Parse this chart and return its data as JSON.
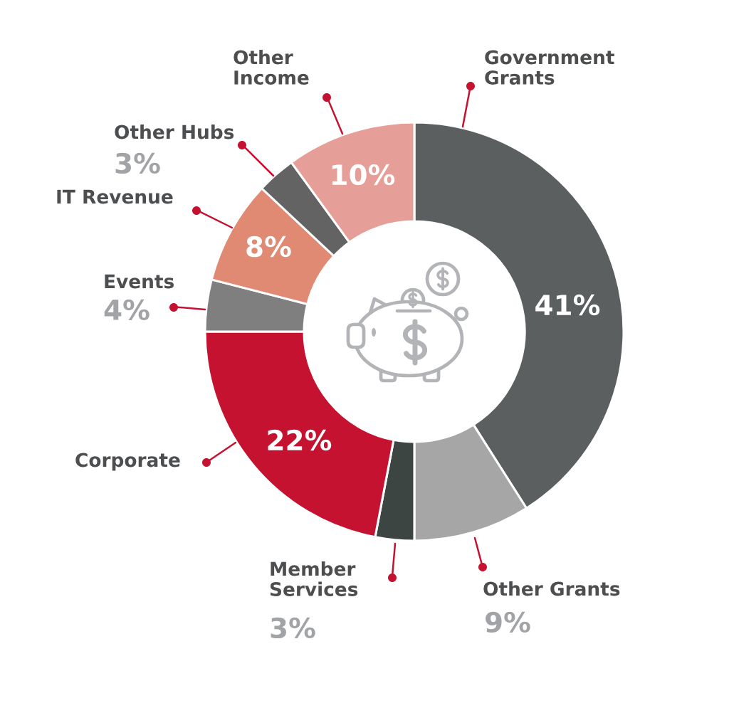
{
  "chart_data": {
    "type": "donut",
    "categories": [
      "Government Grants",
      "Other Grants",
      "Member Services",
      "Corporate",
      "Events",
      "IT Revenue",
      "Other Hubs",
      "Other Income"
    ],
    "values": [
      41,
      9,
      3,
      22,
      4,
      8,
      3,
      10
    ],
    "colors": [
      "#5c5f60",
      "#a5a6a5",
      "#3d4543",
      "#c41230",
      "#7f7f7f",
      "#e08a73",
      "#626362",
      "#e69e98"
    ],
    "value_labels": [
      "41%",
      "9%",
      "3%",
      "22%",
      "4%",
      "8%",
      "3%",
      "10%"
    ]
  }
}
